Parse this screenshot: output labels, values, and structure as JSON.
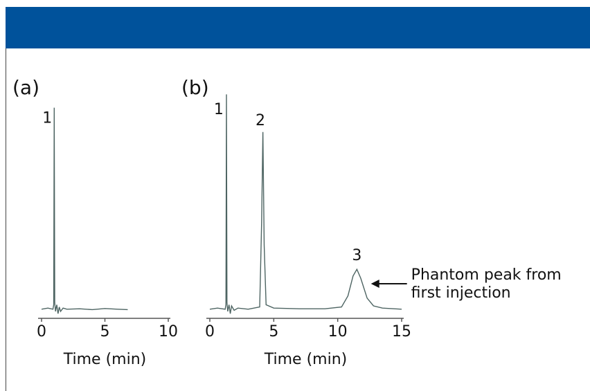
{
  "chart_data": [
    {
      "type": "line",
      "title": "(a)",
      "xlabel": "Time (min)",
      "xlim": [
        0,
        10
      ],
      "xticks": [
        0,
        5,
        10
      ],
      "ylim": [
        0,
        100
      ],
      "series": [
        {
          "name": "trace-a",
          "color": "#4d6462",
          "x": [
            0,
            0.5,
            0.9,
            0.96,
            1.0,
            1.04,
            1.1,
            1.2,
            1.3,
            1.4,
            1.5,
            1.7,
            2,
            3,
            4,
            5,
            6,
            6.8
          ],
          "values": [
            1,
            1.5,
            1,
            3,
            92,
            4,
            0,
            3,
            -1,
            2,
            0,
            1.5,
            1,
            1.2,
            0.8,
            1.3,
            1,
            0.8
          ]
        }
      ],
      "annotations": [
        {
          "text": "1",
          "x": 0.45,
          "y": 87
        }
      ]
    },
    {
      "type": "line",
      "title": "(b)",
      "xlabel": "Time (min)",
      "xlim": [
        0,
        15
      ],
      "xticks": [
        0,
        5,
        10,
        15
      ],
      "ylim": [
        0,
        100
      ],
      "series": [
        {
          "name": "trace-b",
          "color": "#4d6462",
          "x": [
            0,
            0.6,
            1.2,
            1.26,
            1.3,
            1.34,
            1.4,
            1.5,
            1.6,
            1.7,
            1.9,
            2.2,
            3,
            3.9,
            4.05,
            4.15,
            4.25,
            4.4,
            5,
            7,
            9,
            10.3,
            10.8,
            11.2,
            11.5,
            11.8,
            12.3,
            12.8,
            13.5,
            15
          ],
          "values": [
            1,
            1.5,
            1,
            3,
            98,
            4,
            0,
            3,
            -1,
            2.5,
            0.5,
            1.5,
            1,
            2,
            40,
            81,
            30,
            3,
            1.5,
            1.2,
            1.2,
            2,
            7,
            16,
            19,
            15,
            6,
            2.5,
            1.5,
            1
          ]
        }
      ],
      "annotations": [
        {
          "text": "1",
          "x": 0.7,
          "y": 91
        },
        {
          "text": "2",
          "x": 3.95,
          "y": 86
        },
        {
          "text": "3",
          "x": 11.5,
          "y": 25
        },
        {
          "text_lines": [
            "Phantom peak from",
            "first injection"
          ],
          "x": 12.6,
          "y": 12.5,
          "arrow": true
        }
      ]
    }
  ]
}
